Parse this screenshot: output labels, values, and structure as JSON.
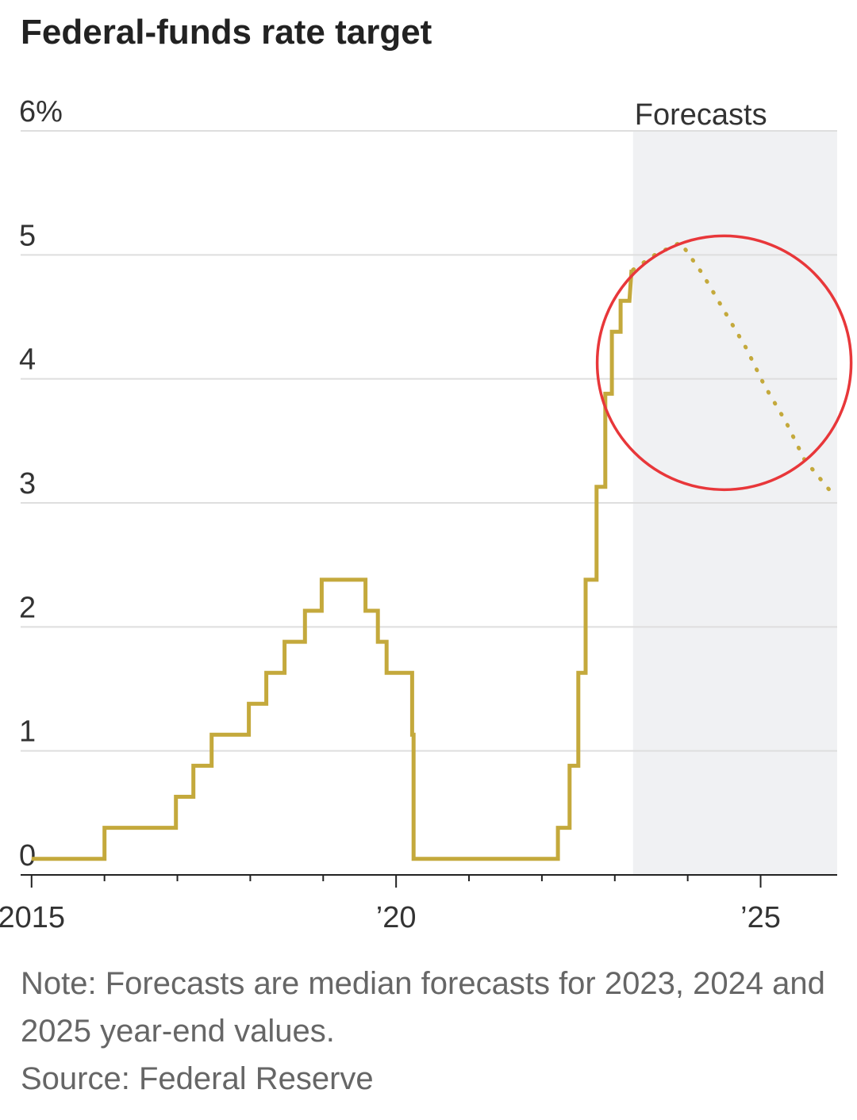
{
  "title": "Federal-funds rate target",
  "note": "Note: Forecasts are median forecasts for 2023, 2024 and 2025 year-end values.",
  "source": "Source: Federal Reserve",
  "chart_data": {
    "type": "line",
    "title": "Federal-funds rate target",
    "xlabel": "",
    "ylabel": "",
    "xlim": [
      2014.85,
      2026.05
    ],
    "ylim": [
      0,
      6
    ],
    "y_ticks": [
      0,
      1,
      2,
      3,
      4,
      5,
      6
    ],
    "y_tick_labels": [
      "0",
      "1",
      "2",
      "3",
      "4",
      "5",
      "6%"
    ],
    "x_ticks_labeled": [
      2015,
      2020,
      2025
    ],
    "x_tick_labels": [
      "2015",
      "’20",
      "’25"
    ],
    "x_ticks_minor": [
      2016,
      2017,
      2018,
      2019,
      2021,
      2022,
      2023,
      2024
    ],
    "grid": true,
    "forecast_region": {
      "label": "Forecasts",
      "start": 2023.25,
      "end": 2026.05
    },
    "series": [
      {
        "style": "solid-step",
        "color": "#c4a93c",
        "points": [
          [
            2015.0,
            0.13
          ],
          [
            2016.0,
            0.13
          ],
          [
            2016.0,
            0.38
          ],
          [
            2016.98,
            0.38
          ],
          [
            2016.98,
            0.63
          ],
          [
            2017.22,
            0.63
          ],
          [
            2017.22,
            0.88
          ],
          [
            2017.47,
            0.88
          ],
          [
            2017.47,
            1.13
          ],
          [
            2017.98,
            1.13
          ],
          [
            2017.98,
            1.38
          ],
          [
            2018.22,
            1.38
          ],
          [
            2018.22,
            1.63
          ],
          [
            2018.47,
            1.63
          ],
          [
            2018.47,
            1.88
          ],
          [
            2018.75,
            1.88
          ],
          [
            2018.75,
            2.13
          ],
          [
            2018.98,
            2.13
          ],
          [
            2018.98,
            2.38
          ],
          [
            2019.58,
            2.38
          ],
          [
            2019.58,
            2.13
          ],
          [
            2019.75,
            2.13
          ],
          [
            2019.75,
            1.88
          ],
          [
            2019.87,
            1.88
          ],
          [
            2019.87,
            1.63
          ],
          [
            2020.22,
            1.63
          ],
          [
            2020.22,
            1.13
          ],
          [
            2020.24,
            1.13
          ],
          [
            2020.24,
            0.13
          ],
          [
            2022.22,
            0.13
          ],
          [
            2022.22,
            0.38
          ],
          [
            2022.38,
            0.38
          ],
          [
            2022.38,
            0.88
          ],
          [
            2022.5,
            0.88
          ],
          [
            2022.5,
            1.63
          ],
          [
            2022.6,
            1.63
          ],
          [
            2022.6,
            2.38
          ],
          [
            2022.75,
            2.38
          ],
          [
            2022.75,
            3.13
          ],
          [
            2022.87,
            3.13
          ],
          [
            2022.87,
            3.88
          ],
          [
            2022.96,
            3.88
          ],
          [
            2022.96,
            4.38
          ],
          [
            2023.08,
            4.38
          ],
          [
            2023.08,
            4.63
          ],
          [
            2023.2,
            4.63
          ],
          [
            2023.23,
            4.88
          ]
        ]
      },
      {
        "style": "dotted-forecast",
        "color": "#c4a93c",
        "points": [
          [
            2023.25,
            4.88
          ],
          [
            2023.55,
            5.0
          ],
          [
            2023.9,
            5.1
          ],
          [
            2024.2,
            4.85
          ],
          [
            2024.5,
            4.55
          ],
          [
            2024.8,
            4.25
          ],
          [
            2025.05,
            3.95
          ],
          [
            2025.35,
            3.65
          ],
          [
            2025.6,
            3.35
          ],
          [
            2025.95,
            3.1
          ]
        ]
      }
    ]
  },
  "annotation": {
    "shape": "circle",
    "color": "#e8373a"
  }
}
